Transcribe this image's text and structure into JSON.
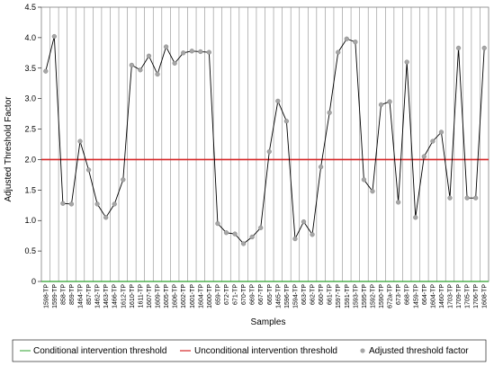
{
  "chart_data": {
    "type": "line",
    "xlabel": "Samples",
    "ylabel": "Adjusted Threshold Factor",
    "ylim": [
      0,
      4.5
    ],
    "yticks": [
      "0",
      "0.5",
      "1.0",
      "1.5",
      "2.0",
      "2.5",
      "3.0",
      "3.5",
      "4.0",
      "4.5"
    ],
    "grid": "vertical",
    "legend_position": "bottom",
    "categories": [
      "1598-TP",
      "1599-TP",
      "858-TP",
      "859-TP",
      "1464-TP",
      "857-TP",
      "1462-TP",
      "1463-TP",
      "1466-TP",
      "1612-TP",
      "1610-TP",
      "1611-TP",
      "1607-TP",
      "1609-TP",
      "1605-TP",
      "1606-TP",
      "1602-TP",
      "1601-TP",
      "1604-TP",
      "1600-TP",
      "659-TP",
      "672-TP",
      "671-TP",
      "670-TP",
      "669-TP",
      "667-TP",
      "665-TP",
      "1465-TP",
      "1596-TP",
      "1594-TP",
      "663-TP",
      "662-TP",
      "660-TP",
      "661-TP",
      "1597-TP",
      "1591-TP",
      "1593-TP",
      "1595-TP",
      "1592-TP",
      "1590-TP",
      "672a-TP",
      "673-TP",
      "668-TP",
      "1459-TP",
      "664-TP",
      "1604-TP",
      "1460-TP",
      "1703-TP",
      "1709-TP",
      "1705-TP",
      "1706-TP",
      "1608-TP"
    ],
    "series": [
      {
        "name": "Adjusted threshold factor",
        "color": "#000000",
        "marker_color": "#a6a6a6",
        "values": [
          3.45,
          4.02,
          1.28,
          1.27,
          2.3,
          1.83,
          1.27,
          1.05,
          1.27,
          1.67,
          3.55,
          3.47,
          3.7,
          3.4,
          3.85,
          3.58,
          3.75,
          3.78,
          3.77,
          3.76,
          0.95,
          0.8,
          0.78,
          0.62,
          0.73,
          0.88,
          2.13,
          2.96,
          2.63,
          0.7,
          0.98,
          0.77,
          1.88,
          2.77,
          3.76,
          3.98,
          3.93,
          1.67,
          1.48,
          2.9,
          2.95,
          1.3,
          3.6,
          1.05,
          2.05,
          2.3,
          2.45,
          1.37,
          3.83,
          1.37,
          1.37,
          3.83
        ]
      },
      {
        "name": "Conditional intervention threshold",
        "color": "#2ca02c",
        "constant": 0
      },
      {
        "name": "Unconditional intervention threshold",
        "color": "#d62728",
        "constant": 2.0
      }
    ],
    "legend": [
      "Conditional intervention threshold",
      "Unconditional intervention threshold",
      "Adjusted threshold factor"
    ]
  }
}
